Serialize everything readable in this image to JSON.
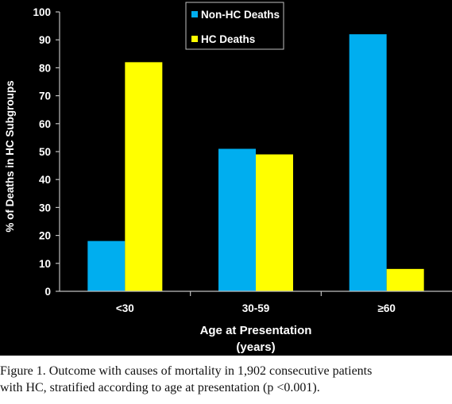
{
  "chart_data": {
    "type": "bar",
    "categories": [
      "<30",
      "30-59",
      "≥60"
    ],
    "series": [
      {
        "name": "Non-HC Deaths",
        "values": [
          18,
          51,
          92
        ],
        "color": "#00AEEF"
      },
      {
        "name": "HC Deaths",
        "values": [
          82,
          49,
          8
        ],
        "color": "#FFFF00"
      }
    ],
    "title": "",
    "xlabel_line1": "Age at Presentation",
    "xlabel_line2": "(years)",
    "ylabel": "% of Deaths in HC Subgroups",
    "ylim": [
      0,
      100
    ],
    "yticks": [
      0,
      10,
      20,
      30,
      40,
      50,
      60,
      70,
      80,
      90,
      100
    ],
    "grid": false,
    "legend_position": "top-center",
    "background_color": "#000000",
    "text_color": "#ffffff"
  },
  "caption": {
    "line1": "Figure 1. Outcome with causes of mortality in 1,902 consecutive patients",
    "line2": "with HC, stratified according to age at presentation (p <0.001)."
  }
}
